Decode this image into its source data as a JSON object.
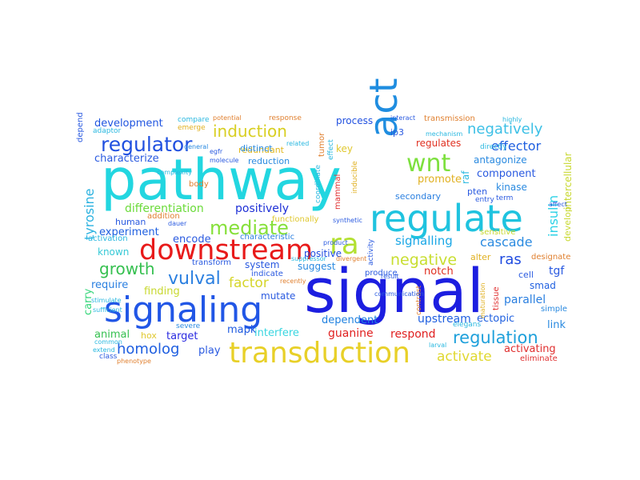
{
  "words": [
    {
      "text": "pathway",
      "color": "#22d6e0"
    },
    {
      "text": "signal",
      "color": "#1c1ee0"
    },
    {
      "text": "regulate",
      "color": "#1fc3df"
    },
    {
      "text": "signaling",
      "color": "#2156e6"
    },
    {
      "text": "transduction",
      "color": "#e8d028"
    },
    {
      "text": "downstream",
      "color": "#e81a1a"
    },
    {
      "text": "act",
      "color": "#1f8de0"
    },
    {
      "text": "ra",
      "color": "#b3e032"
    },
    {
      "text": "mediate",
      "color": "#86e03a"
    },
    {
      "text": "wnt",
      "color": "#7de03e"
    },
    {
      "text": "regulator",
      "color": "#2050e0"
    },
    {
      "text": "induction",
      "color": "#d8cf22"
    },
    {
      "text": "negatively",
      "color": "#3dc0e6"
    },
    {
      "text": "regulation",
      "color": "#1ea0db"
    },
    {
      "text": "vulval",
      "color": "#2a7fe0"
    },
    {
      "text": "growth",
      "color": "#36c050"
    },
    {
      "text": "homolog",
      "color": "#1f5fe0"
    },
    {
      "text": "negative",
      "color": "#c8de30"
    },
    {
      "text": "effector",
      "color": "#2060e0"
    },
    {
      "text": "insulin",
      "color": "#2bd1e6"
    },
    {
      "text": "cascade",
      "color": "#2a8ae0"
    },
    {
      "text": "signalling",
      "color": "#1aa7e6"
    },
    {
      "text": "ras",
      "color": "#1f4be0"
    },
    {
      "text": "factor",
      "color": "#d5d52a"
    },
    {
      "text": "activate",
      "color": "#e0d830"
    },
    {
      "text": "differentiation",
      "color": "#6bdb3a"
    },
    {
      "text": "positively",
      "color": "#1e30d6"
    },
    {
      "text": "development",
      "color": "#2055e0"
    },
    {
      "text": "characterize",
      "color": "#2a5ae0"
    },
    {
      "text": "tyrosine",
      "color": "#2bb2e0"
    },
    {
      "text": "experiment",
      "color": "#1e5fe0"
    },
    {
      "text": "encode",
      "color": "#2a5ae0"
    },
    {
      "text": "known",
      "color": "#36c9d6"
    },
    {
      "text": "require",
      "color": "#2a7fe0"
    },
    {
      "text": "carry",
      "color": "#36d67a"
    },
    {
      "text": "animal",
      "color": "#36c050"
    },
    {
      "text": "hox",
      "color": "#e0c830"
    },
    {
      "text": "target",
      "color": "#2a2ae0"
    },
    {
      "text": "mapk",
      "color": "#1e5ae0"
    },
    {
      "text": "interfere",
      "color": "#3ad6e0"
    },
    {
      "text": "dependent",
      "color": "#1e80e0"
    },
    {
      "text": "guanine",
      "color": "#e02020"
    },
    {
      "text": "upstream",
      "color": "#2060e0"
    },
    {
      "text": "respond",
      "color": "#e02020"
    },
    {
      "text": "parallel",
      "color": "#2a7fe0"
    },
    {
      "text": "activating",
      "color": "#e03030"
    },
    {
      "text": "tgf",
      "color": "#2a5ae0"
    },
    {
      "text": "smad",
      "color": "#2060e0"
    },
    {
      "text": "link",
      "color": "#2a8ae0"
    },
    {
      "text": "notch",
      "color": "#e03020"
    },
    {
      "text": "ectopic",
      "color": "#2060e0"
    },
    {
      "text": "suggest",
      "color": "#2a8ae0"
    },
    {
      "text": "system",
      "color": "#2a5ae0"
    },
    {
      "text": "positive",
      "color": "#1e4ae0"
    },
    {
      "text": "mutate",
      "color": "#2a5ae0"
    },
    {
      "text": "finding",
      "color": "#c8d830"
    },
    {
      "text": "process",
      "color": "#2050e0"
    },
    {
      "text": "redundant",
      "color": "#e0b820"
    },
    {
      "text": "reduction",
      "color": "#2a8ae0"
    },
    {
      "text": "distinct",
      "color": "#2a8ae0"
    },
    {
      "text": "key",
      "color": "#e0c830"
    },
    {
      "text": "regulates",
      "color": "#e03020"
    },
    {
      "text": "transmission",
      "color": "#e08030"
    },
    {
      "text": "promote",
      "color": "#e0b020"
    },
    {
      "text": "antagonize",
      "color": "#2a8ae0"
    },
    {
      "text": "component",
      "color": "#2a5ae0"
    },
    {
      "text": "kinase",
      "color": "#2a8ae0"
    },
    {
      "text": "pten",
      "color": "#2a5ae0"
    },
    {
      "text": "secondary",
      "color": "#2a7fe0"
    },
    {
      "text": "raf",
      "color": "#2ab8e0"
    },
    {
      "text": "ip3",
      "color": "#2a5ae0"
    },
    {
      "text": "intercellular",
      "color": "#c8d830"
    },
    {
      "text": "develop",
      "color": "#c8d830"
    },
    {
      "text": "tumor",
      "color": "#e08030"
    },
    {
      "text": "mammal",
      "color": "#e03030"
    },
    {
      "text": "functionally",
      "color": "#e0c830"
    },
    {
      "text": "characteristic",
      "color": "#2a7fe0"
    },
    {
      "text": "activation",
      "color": "#2ab8e0"
    },
    {
      "text": "transform",
      "color": "#2a5ae0"
    },
    {
      "text": "indicate",
      "color": "#2a5ae0"
    },
    {
      "text": "produce",
      "color": "#2a5ae0"
    },
    {
      "text": "alter",
      "color": "#e0b020"
    },
    {
      "text": "sensitive",
      "color": "#c8d830"
    },
    {
      "text": "cell",
      "color": "#2a5ae0"
    },
    {
      "text": "simple",
      "color": "#2a8ae0"
    },
    {
      "text": "designate",
      "color": "#e08030"
    },
    {
      "text": "eliminate",
      "color": "#e03030"
    },
    {
      "text": "play",
      "color": "#2a5ae0"
    },
    {
      "text": "class",
      "color": "#2a5ae0"
    },
    {
      "text": "human",
      "color": "#2a5ae0"
    },
    {
      "text": "addition",
      "color": "#e08030"
    },
    {
      "text": "body",
      "color": "#e08030"
    },
    {
      "text": "severe",
      "color": "#2a8ae0"
    },
    {
      "text": "elegans",
      "color": "#2ab8e0"
    },
    {
      "text": "depend",
      "color": "#2a5ae0"
    },
    {
      "text": "adaptor",
      "color": "#2ab8e0"
    },
    {
      "text": "compare",
      "color": "#2ab8e0"
    },
    {
      "text": "emerge",
      "color": "#e0b020"
    },
    {
      "text": "potential",
      "color": "#e08030"
    },
    {
      "text": "response",
      "color": "#e08030"
    },
    {
      "text": "interact",
      "color": "#2a5ae0"
    },
    {
      "text": "entry",
      "color": "#2a5ae0"
    },
    {
      "text": "term",
      "color": "#2a5ae0"
    },
    {
      "text": "directly",
      "color": "#2ab8e0"
    },
    {
      "text": "effect",
      "color": "#2ab8e0"
    },
    {
      "text": "coordinate",
      "color": "#2ab8e0"
    },
    {
      "text": "inducible",
      "color": "#e0b020"
    },
    {
      "text": "activity",
      "color": "#2a5ae0"
    },
    {
      "text": "contrast",
      "color": "#e08030"
    },
    {
      "text": "tissue",
      "color": "#e03030"
    },
    {
      "text": "maturation",
      "color": "#e0b020"
    },
    {
      "text": "stimulate",
      "color": "#2ab8e0"
    },
    {
      "text": "sufficient",
      "color": "#2ab8e0"
    },
    {
      "text": "common",
      "color": "#2ab8e0"
    },
    {
      "text": "extend",
      "color": "#2ab8e0"
    },
    {
      "text": "divergent",
      "color": "#e08030"
    },
    {
      "text": "recently",
      "color": "#e08030"
    },
    {
      "text": "product",
      "color": "#2a5ae0"
    },
    {
      "text": "communication",
      "color": "#2a5ae0"
    },
    {
      "text": "complexity",
      "color": "#2ab8e0"
    },
    {
      "text": "general",
      "color": "#2a8ae0"
    },
    {
      "text": "egfr",
      "color": "#2a5ae0"
    },
    {
      "text": "molecule",
      "color": "#2a5ae0"
    },
    {
      "text": "related",
      "color": "#2ab8e0"
    },
    {
      "text": "synthetic",
      "color": "#2a5ae0"
    },
    {
      "text": "suppressor",
      "color": "#2ab8e0"
    },
    {
      "text": "result",
      "color": "#2a5ae0"
    },
    {
      "text": "larval",
      "color": "#2ab8e0"
    },
    {
      "text": "dauer",
      "color": "#2a5ae0"
    },
    {
      "text": "phenotype",
      "color": "#e08030"
    },
    {
      "text": "mechanism",
      "color": "#2ab8e0"
    },
    {
      "text": "affect",
      "color": "#2a5ae0"
    },
    {
      "text": "highly",
      "color": "#2ab8e0"
    }
  ]
}
